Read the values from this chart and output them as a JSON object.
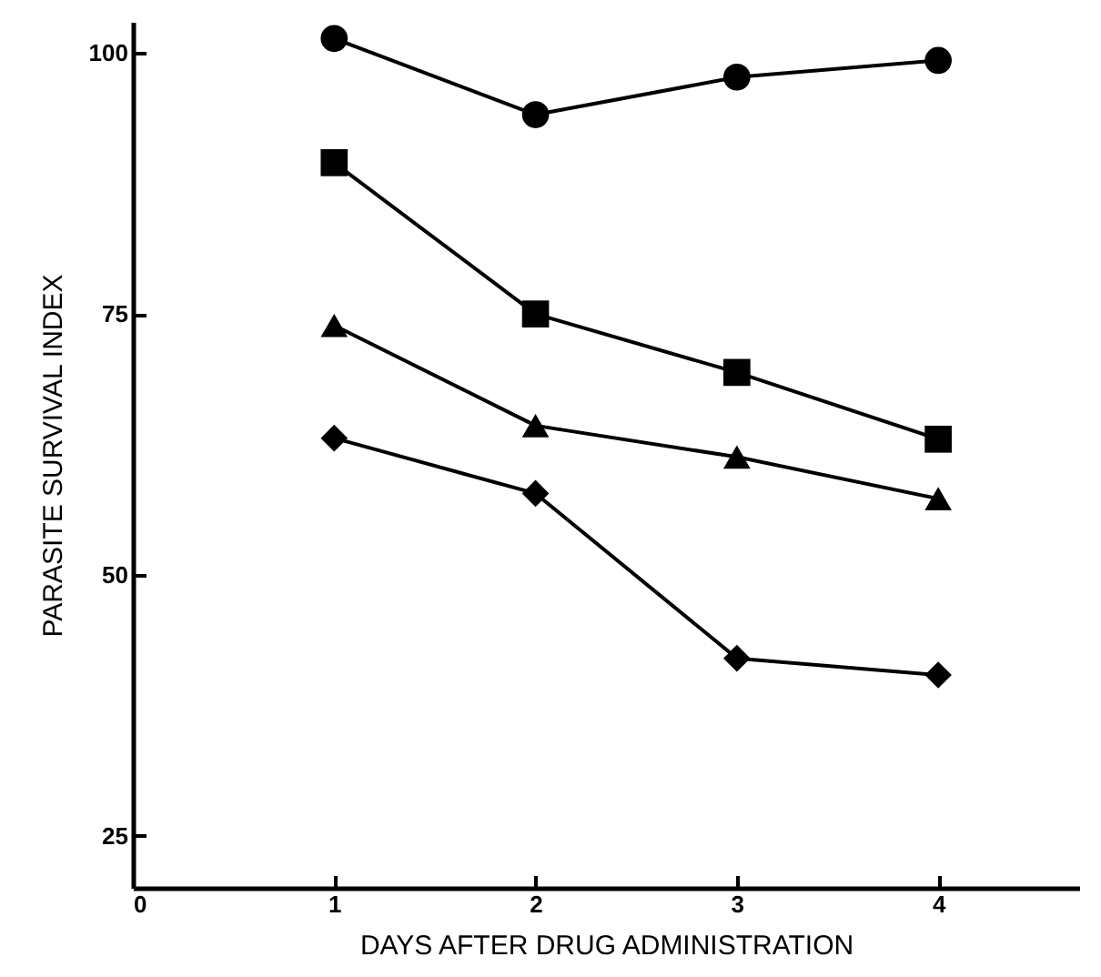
{
  "chart_data": {
    "type": "line",
    "xlabel": "DAYS AFTER DRUG ADMINISTRATION",
    "ylabel": "PARASITE SURVIVAL INDEX",
    "x": [
      1,
      2,
      3,
      4
    ],
    "series": [
      {
        "color": "#000000",
        "marker": "circle",
        "values": [
          101.4,
          94.1,
          97.7,
          99.3
        ]
      },
      {
        "color": "#000000",
        "marker": "square",
        "values": [
          89.5,
          75.0,
          69.4,
          63.0
        ]
      },
      {
        "color": "#000000",
        "marker": "triangle",
        "values": [
          73.9,
          64.3,
          61.3,
          57.3
        ]
      },
      {
        "color": "#000000",
        "marker": "diamond",
        "values": [
          63.1,
          57.8,
          42.0,
          40.4
        ]
      }
    ],
    "xlim": [
      0,
      4.7
    ],
    "xticks": [
      0,
      1,
      2,
      3,
      4
    ],
    "ylim": [
      20,
      103
    ],
    "yticks": [
      25,
      50,
      75,
      100
    ],
    "line_style": "solid",
    "grid": false
  }
}
